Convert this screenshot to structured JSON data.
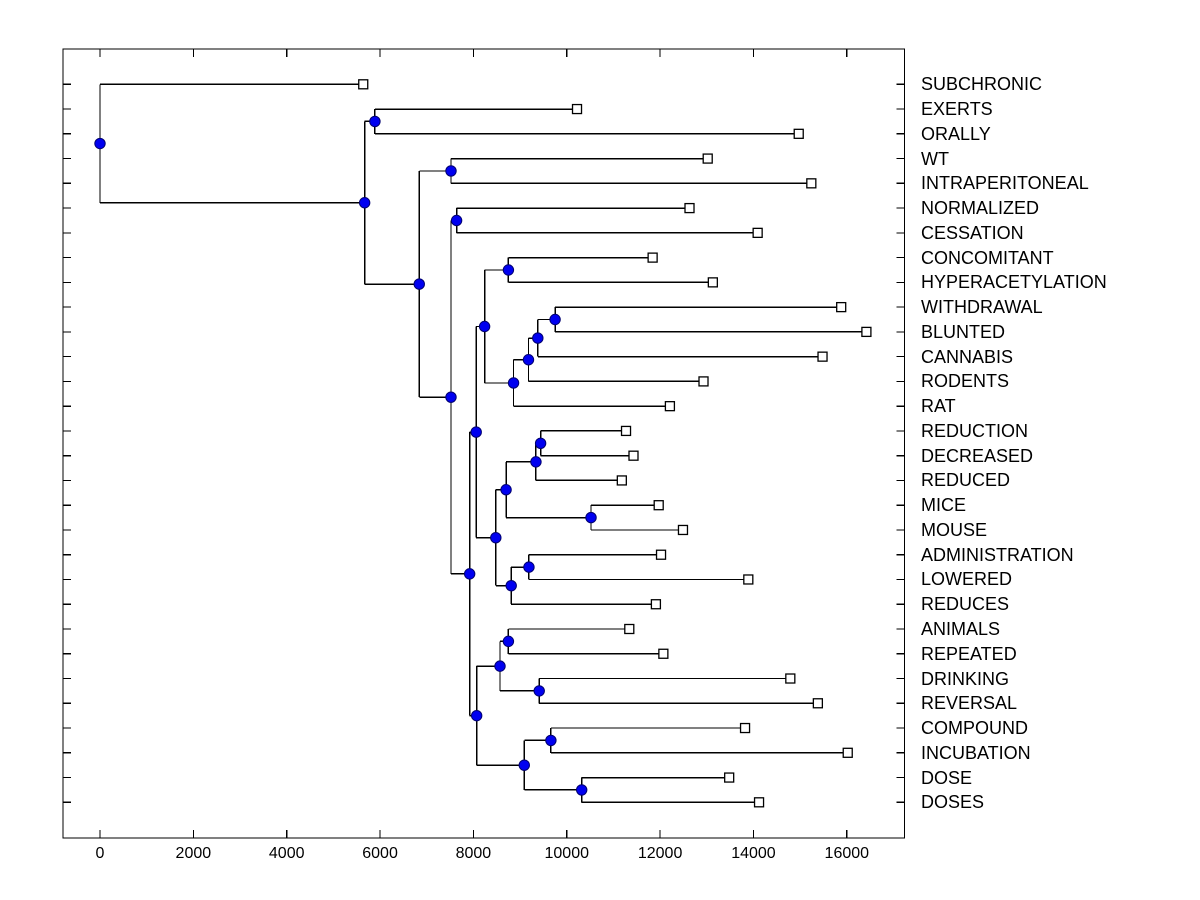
{
  "figure": {
    "title": "",
    "background": "#ffffff"
  },
  "colors": {
    "branch_line": "#000000",
    "axis_line": "#000000",
    "internal_node_fill": "#0000f0",
    "internal_node_edge": "#000070",
    "leaf_marker_fill": "#ffffff",
    "leaf_marker_edge": "#000000",
    "text": "#000000"
  },
  "chart_data": {
    "type": "dendrogram",
    "orientation": "horizontal",
    "title": "",
    "xlabel": "",
    "ylabel": "",
    "grid": false,
    "n_leaves": 30,
    "x_tick_values": [
      0,
      2000,
      4000,
      6000,
      8000,
      10000,
      12000,
      14000,
      16000
    ],
    "x_tick_labels": [
      "0",
      "2000",
      "4000",
      "6000",
      "8000",
      "10000",
      "12000",
      "14000",
      "16000"
    ],
    "xlim": [
      -800,
      17250
    ],
    "marker_internal": "filled-blue-circle",
    "marker_leaf": "open-white-square",
    "leaves": [
      {
        "label": "SUBCHRONIC",
        "x": 5640
      },
      {
        "label": "EXERTS",
        "x": 10220
      },
      {
        "label": "ORALLY",
        "x": 14970
      },
      {
        "label": "WT",
        "x": 13020
      },
      {
        "label": "INTRAPERITONEAL",
        "x": 15240
      },
      {
        "label": "NORMALIZED",
        "x": 12630
      },
      {
        "label": "CESSATION",
        "x": 14090
      },
      {
        "label": "CONCOMITANT",
        "x": 11840
      },
      {
        "label": "HYPERACETYLATION",
        "x": 13130
      },
      {
        "label": "WITHDRAWAL",
        "x": 15880
      },
      {
        "label": "BLUNTED",
        "x": 16420
      },
      {
        "label": "CANNABIS",
        "x": 15480
      },
      {
        "label": "RODENTS",
        "x": 12930
      },
      {
        "label": "RAT",
        "x": 12210
      },
      {
        "label": "REDUCTION",
        "x": 11270
      },
      {
        "label": "DECREASED",
        "x": 11430
      },
      {
        "label": "REDUCED",
        "x": 11180
      },
      {
        "label": "MICE",
        "x": 11970
      },
      {
        "label": "MOUSE",
        "x": 12490
      },
      {
        "label": "ADMINISTRATION",
        "x": 12020
      },
      {
        "label": "LOWERED",
        "x": 13890
      },
      {
        "label": "REDUCES",
        "x": 11910
      },
      {
        "label": "ANIMALS",
        "x": 11340
      },
      {
        "label": "REPEATED",
        "x": 12070
      },
      {
        "label": "DRINKING",
        "x": 14790
      },
      {
        "label": "REVERSAL",
        "x": 15380
      },
      {
        "label": "COMPOUND",
        "x": 13820
      },
      {
        "label": "INCUBATION",
        "x": 16020
      },
      {
        "label": "DOSE",
        "x": 13480
      },
      {
        "label": "DOSES",
        "x": 14120
      }
    ],
    "tree": {
      "x": 0,
      "children": [
        {
          "leaf": "SUBCHRONIC",
          "x": 5640
        },
        {
          "x": 5670,
          "children": [
            {
              "x": 5890,
              "children": [
                {
                  "leaf": "EXERTS",
                  "x": 10220
                },
                {
                  "leaf": "ORALLY",
                  "x": 14970
                }
              ]
            },
            {
              "x": 6840,
              "children": [
                {
                  "x": 7520,
                  "children": [
                    {
                      "leaf": "WT",
                      "x": 13020
                    },
                    {
                      "leaf": "INTRAPERITONEAL",
                      "x": 15240
                    }
                  ]
                },
                {
                  "x": 7520,
                  "children": [
                    {
                      "x": 7640,
                      "children": [
                        {
                          "leaf": "NORMALIZED",
                          "x": 12630
                        },
                        {
                          "leaf": "CESSATION",
                          "x": 14090
                        }
                      ]
                    },
                    {
                      "x": 7920,
                      "children": [
                        {
                          "x": 8060,
                          "children": [
                            {
                              "x": 8240,
                              "children": [
                                {
                                  "x": 8750,
                                  "children": [
                                    {
                                      "leaf": "CONCOMITANT",
                                      "x": 11840
                                    },
                                    {
                                      "leaf": "HYPERACETYLATION",
                                      "x": 13130
                                    }
                                  ]
                                },
                                {
                                  "x": 8860,
                                  "children": [
                                    {
                                      "x": 9180,
                                      "children": [
                                        {
                                          "x": 9380,
                                          "children": [
                                            {
                                              "x": 9750,
                                              "children": [
                                                {
                                                  "leaf": "WITHDRAWAL",
                                                  "x": 15880
                                                },
                                                {
                                                  "leaf": "BLUNTED",
                                                  "x": 16420
                                                }
                                              ]
                                            },
                                            {
                                              "leaf": "CANNABIS",
                                              "x": 15480
                                            }
                                          ]
                                        },
                                        {
                                          "leaf": "RODENTS",
                                          "x": 12930
                                        }
                                      ]
                                    },
                                    {
                                      "leaf": "RAT",
                                      "x": 12210
                                    }
                                  ]
                                }
                              ]
                            },
                            {
                              "x": 8480,
                              "children": [
                                {
                                  "x": 8700,
                                  "children": [
                                    {
                                      "x": 9340,
                                      "children": [
                                        {
                                          "x": 9440,
                                          "children": [
                                            {
                                              "leaf": "REDUCTION",
                                              "x": 11270
                                            },
                                            {
                                              "leaf": "DECREASED",
                                              "x": 11430
                                            }
                                          ]
                                        },
                                        {
                                          "leaf": "REDUCED",
                                          "x": 11180
                                        }
                                      ]
                                    },
                                    {
                                      "x": 10520,
                                      "children": [
                                        {
                                          "leaf": "MICE",
                                          "x": 11970
                                        },
                                        {
                                          "leaf": "MOUSE",
                                          "x": 12490
                                        }
                                      ]
                                    }
                                  ]
                                },
                                {
                                  "x": 8810,
                                  "children": [
                                    {
                                      "x": 9190,
                                      "children": [
                                        {
                                          "leaf": "ADMINISTRATION",
                                          "x": 12020
                                        },
                                        {
                                          "leaf": "LOWERED",
                                          "x": 13890
                                        }
                                      ]
                                    },
                                    {
                                      "leaf": "REDUCES",
                                      "x": 11910
                                    }
                                  ]
                                }
                              ]
                            }
                          ]
                        },
                        {
                          "x": 8070,
                          "children": [
                            {
                              "x": 8570,
                              "children": [
                                {
                                  "x": 8750,
                                  "children": [
                                    {
                                      "leaf": "ANIMALS",
                                      "x": 11340
                                    },
                                    {
                                      "leaf": "REPEATED",
                                      "x": 12070
                                    }
                                  ]
                                },
                                {
                                  "x": 9410,
                                  "children": [
                                    {
                                      "leaf": "DRINKING",
                                      "x": 14790
                                    },
                                    {
                                      "leaf": "REVERSAL",
                                      "x": 15380
                                    }
                                  ]
                                }
                              ]
                            },
                            {
                              "x": 9090,
                              "children": [
                                {
                                  "x": 9660,
                                  "children": [
                                    {
                                      "leaf": "COMPOUND",
                                      "x": 13820
                                    },
                                    {
                                      "leaf": "INCUBATION",
                                      "x": 16020
                                    }
                                  ]
                                },
                                {
                                  "x": 10320,
                                  "children": [
                                    {
                                      "leaf": "DOSE",
                                      "x": 13480
                                    },
                                    {
                                      "leaf": "DOSES",
                                      "x": 14120
                                    }
                                  ]
                                }
                              ]
                            }
                          ]
                        }
                      ]
                    }
                  ]
                }
              ]
            }
          ]
        }
      ]
    }
  }
}
